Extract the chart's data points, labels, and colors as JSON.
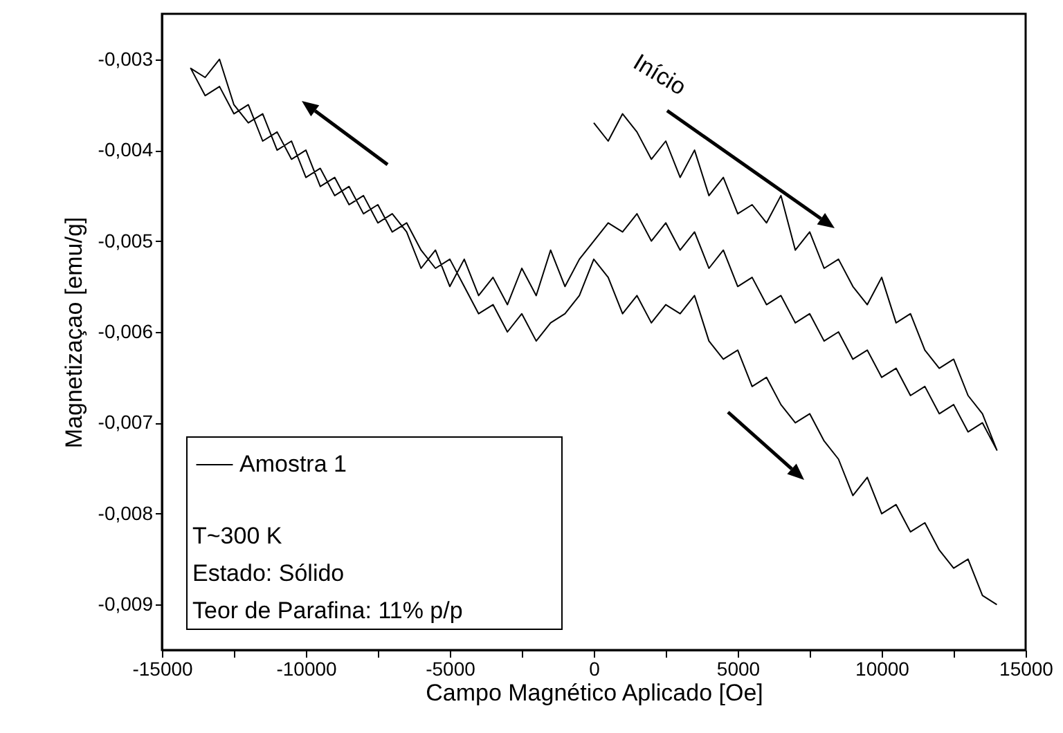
{
  "chart_data": {
    "type": "line",
    "xlabel": "Campo Magnético Aplicado [Oe]",
    "ylabel": "Magnetizaçao [emu/g]",
    "xlim": [
      -15000,
      15000
    ],
    "ylim": [
      -0.0095,
      -0.0025
    ],
    "xticks": [
      -15000,
      {
        "value": -12500,
        "label": null
      },
      -10000,
      {
        "value": -7500,
        "label": null
      },
      -5000,
      {
        "value": -2500,
        "label": null
      },
      0,
      {
        "value": 2500,
        "label": null
      },
      5000,
      {
        "value": 7500,
        "label": null
      },
      10000,
      {
        "value": 12500,
        "label": null
      },
      15000
    ],
    "yticks": [
      {
        "value": -0.003,
        "label": "-0,003"
      },
      {
        "value": -0.004,
        "label": "-0,004"
      },
      {
        "value": -0.005,
        "label": "-0,005"
      },
      {
        "value": -0.006,
        "label": "-0,006"
      },
      {
        "value": -0.007,
        "label": "-0,007"
      },
      {
        "value": -0.008,
        "label": "-0,008"
      },
      {
        "value": -0.009,
        "label": "-0,009"
      }
    ],
    "grid": false,
    "legend": "bottom left",
    "marker": "none",
    "line_style": "solid",
    "annotations": [
      "Início",
      "T~300 K",
      "Estado: Sólido",
      "Teor de Parafina: 11% p/p"
    ],
    "series": [
      {
        "name": "Amostra 1",
        "color": "#000000",
        "x": [
          0,
          500,
          1000,
          1500,
          2000,
          2500,
          3000,
          3500,
          4000,
          4500,
          5000,
          5500,
          6000,
          6500,
          7000,
          7500,
          8000,
          8500,
          9000,
          9500,
          10000,
          10500,
          11000,
          11500,
          12000,
          12500,
          13000,
          13500,
          14000,
          14000,
          13500,
          13000,
          12500,
          12000,
          11500,
          11000,
          10500,
          10000,
          9500,
          9000,
          8500,
          8000,
          7500,
          7000,
          6500,
          6000,
          5500,
          5000,
          4500,
          4000,
          3500,
          3000,
          2500,
          2000,
          1500,
          1000,
          500,
          0,
          -500,
          -1000,
          -1500,
          -2000,
          -2500,
          -3000,
          -3500,
          -4000,
          -4500,
          -5000,
          -5500,
          -6000,
          -6500,
          -7000,
          -7500,
          -8000,
          -8500,
          -9000,
          -9500,
          -10000,
          -10500,
          -11000,
          -11500,
          -12000,
          -12500,
          -13000,
          -13500,
          -14000,
          -13500,
          -13000,
          -12500,
          -12000,
          -11500,
          -11000,
          -10500,
          -10000,
          -9500,
          -9000,
          -8500,
          -8000,
          -7500,
          -7000,
          -6500,
          -6000,
          -5500,
          -5000,
          -4500,
          -4000,
          -3500,
          -3000,
          -2500,
          -2000,
          -1500,
          -1000,
          -500,
          0,
          500,
          1000,
          1500,
          2000,
          2500,
          3000,
          3500,
          4000,
          4500,
          5000,
          5500,
          6000,
          6500,
          7000,
          7500,
          8000,
          8500,
          9000,
          9500,
          10000,
          10500,
          11000,
          11500,
          12000,
          12500,
          13000,
          13500,
          14000
        ],
        "values": [
          -0.0037,
          -0.0039,
          -0.0036,
          -0.0038,
          -0.0041,
          -0.0039,
          -0.0043,
          -0.004,
          -0.0045,
          -0.0043,
          -0.0047,
          -0.0046,
          -0.0048,
          -0.0045,
          -0.0051,
          -0.0049,
          -0.0053,
          -0.0052,
          -0.0055,
          -0.0057,
          -0.0054,
          -0.0059,
          -0.0058,
          -0.0062,
          -0.0064,
          -0.0063,
          -0.0067,
          -0.0069,
          -0.0073,
          -0.0073,
          -0.007,
          -0.0071,
          -0.0068,
          -0.0069,
          -0.0066,
          -0.0067,
          -0.0064,
          -0.0065,
          -0.0062,
          -0.0063,
          -0.006,
          -0.0061,
          -0.0058,
          -0.0059,
          -0.0056,
          -0.0057,
          -0.0054,
          -0.0055,
          -0.0051,
          -0.0053,
          -0.0049,
          -0.0051,
          -0.0048,
          -0.005,
          -0.0047,
          -0.0049,
          -0.0048,
          -0.005,
          -0.0052,
          -0.0055,
          -0.0051,
          -0.0056,
          -0.0053,
          -0.0057,
          -0.0054,
          -0.0056,
          -0.0052,
          -0.0055,
          -0.0051,
          -0.0053,
          -0.0049,
          -0.0047,
          -0.0048,
          -0.0045,
          -0.0046,
          -0.0043,
          -0.0044,
          -0.004,
          -0.0041,
          -0.0038,
          -0.0039,
          -0.0035,
          -0.0036,
          -0.0033,
          -0.0034,
          -0.0031,
          -0.0032,
          -0.003,
          -0.0035,
          -0.0037,
          -0.0036,
          -0.004,
          -0.0039,
          -0.0043,
          -0.0042,
          -0.0045,
          -0.0044,
          -0.0047,
          -0.0046,
          -0.0049,
          -0.0048,
          -0.0051,
          -0.0053,
          -0.0052,
          -0.0055,
          -0.0058,
          -0.0057,
          -0.006,
          -0.0058,
          -0.0061,
          -0.0059,
          -0.0058,
          -0.0056,
          -0.0052,
          -0.0054,
          -0.0058,
          -0.0056,
          -0.0059,
          -0.0057,
          -0.0058,
          -0.0056,
          -0.0061,
          -0.0063,
          -0.0062,
          -0.0066,
          -0.0065,
          -0.0068,
          -0.007,
          -0.0069,
          -0.0072,
          -0.0074,
          -0.0078,
          -0.0076,
          -0.008,
          -0.0079,
          -0.0082,
          -0.0081,
          -0.0084,
          -0.0086,
          -0.0085,
          -0.0089,
          -0.009
        ]
      }
    ]
  }
}
